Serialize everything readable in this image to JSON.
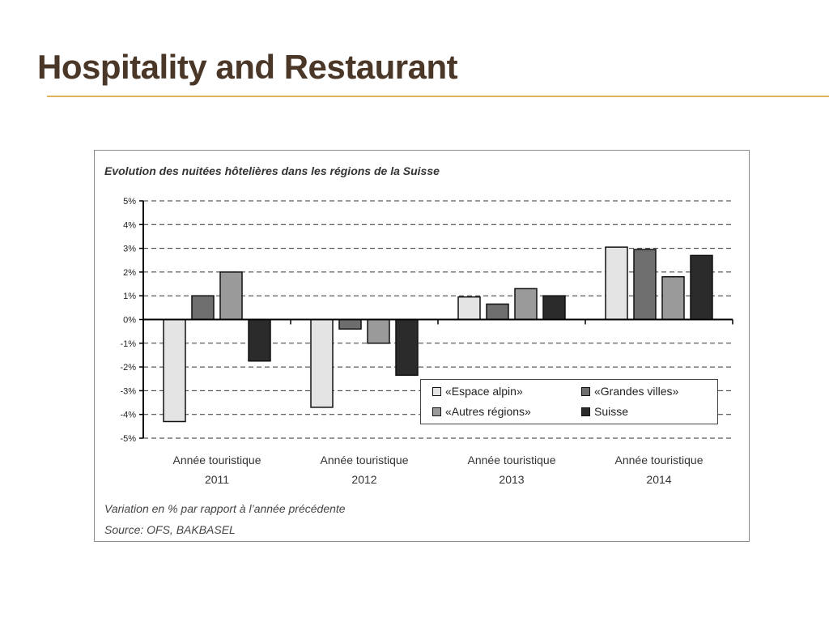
{
  "slide": {
    "title": "Hospitality and Restaurant"
  },
  "chart_data": {
    "type": "bar",
    "title": "Evolution des nuitées hôtelières dans les régions de la Suisse",
    "categories": [
      [
        "Année touristique",
        "2011"
      ],
      [
        "Année touristique",
        "2012"
      ],
      [
        "Année touristique",
        "2013"
      ],
      [
        "Année touristique",
        "2014"
      ]
    ],
    "series": [
      {
        "name": "«Espace alpin»",
        "color": "#e4e4e4",
        "values": [
          -4.3,
          -3.7,
          0.95,
          3.05
        ]
      },
      {
        "name": "«Grandes villes»",
        "color": "#6e6e6e",
        "values": [
          1.0,
          -0.4,
          0.65,
          2.95
        ]
      },
      {
        "name": "«Autres régions»",
        "color": "#9a9a9a",
        "values": [
          2.0,
          -1.0,
          1.3,
          1.8
        ]
      },
      {
        "name": "Suisse",
        "color": "#2b2b2b",
        "values": [
          -1.75,
          -2.35,
          1.0,
          2.7
        ]
      }
    ],
    "ylim": [
      -5,
      5
    ],
    "yticks": [
      "5%",
      "4%",
      "3%",
      "2%",
      "1%",
      "0%",
      "-1%",
      "-2%",
      "-3%",
      "-4%",
      "-5%"
    ],
    "ytick_values": [
      5,
      4,
      3,
      2,
      1,
      0,
      -1,
      -2,
      -3,
      -4,
      -5
    ],
    "grid": true,
    "legend_position": "bottom-right",
    "footnotes": [
      "Variation en % par rapport à l’année précédente",
      "Source: OFS, BAKBASEL"
    ]
  }
}
